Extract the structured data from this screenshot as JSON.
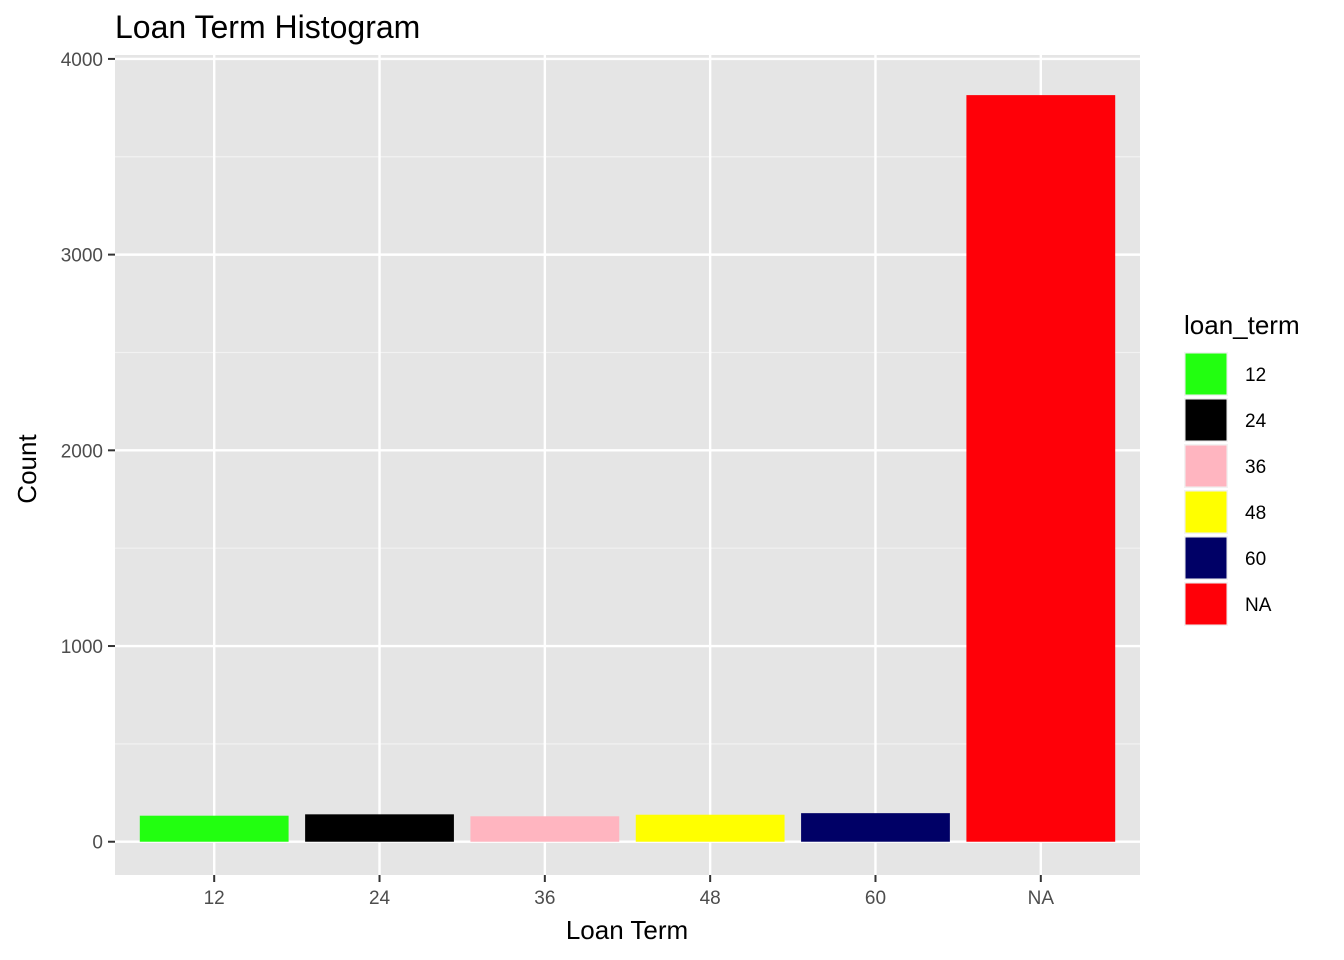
{
  "chart_data": {
    "type": "bar",
    "title": "Loan Term Histogram",
    "xlabel": "Loan Term",
    "ylabel": "Count",
    "categories": [
      "12",
      "24",
      "36",
      "48",
      "60",
      "NA"
    ],
    "values": [
      133,
      140,
      130,
      138,
      146,
      3815
    ],
    "colors": [
      "#22ff10",
      "#000000",
      "#ffb5c0",
      "#ffff00",
      "#000066",
      "#ff0008"
    ],
    "ylim": [
      -170,
      4020
    ],
    "yticks": [
      0,
      1000,
      2000,
      3000,
      4000
    ],
    "ytick_labels": [
      "0",
      "1000",
      "2000",
      "3000",
      "4000"
    ],
    "grid": true,
    "panel_background": "#e5e5e5",
    "legend": {
      "title": "loan_term",
      "position": "right",
      "items": [
        "12",
        "24",
        "36",
        "48",
        "60",
        "NA"
      ]
    }
  }
}
